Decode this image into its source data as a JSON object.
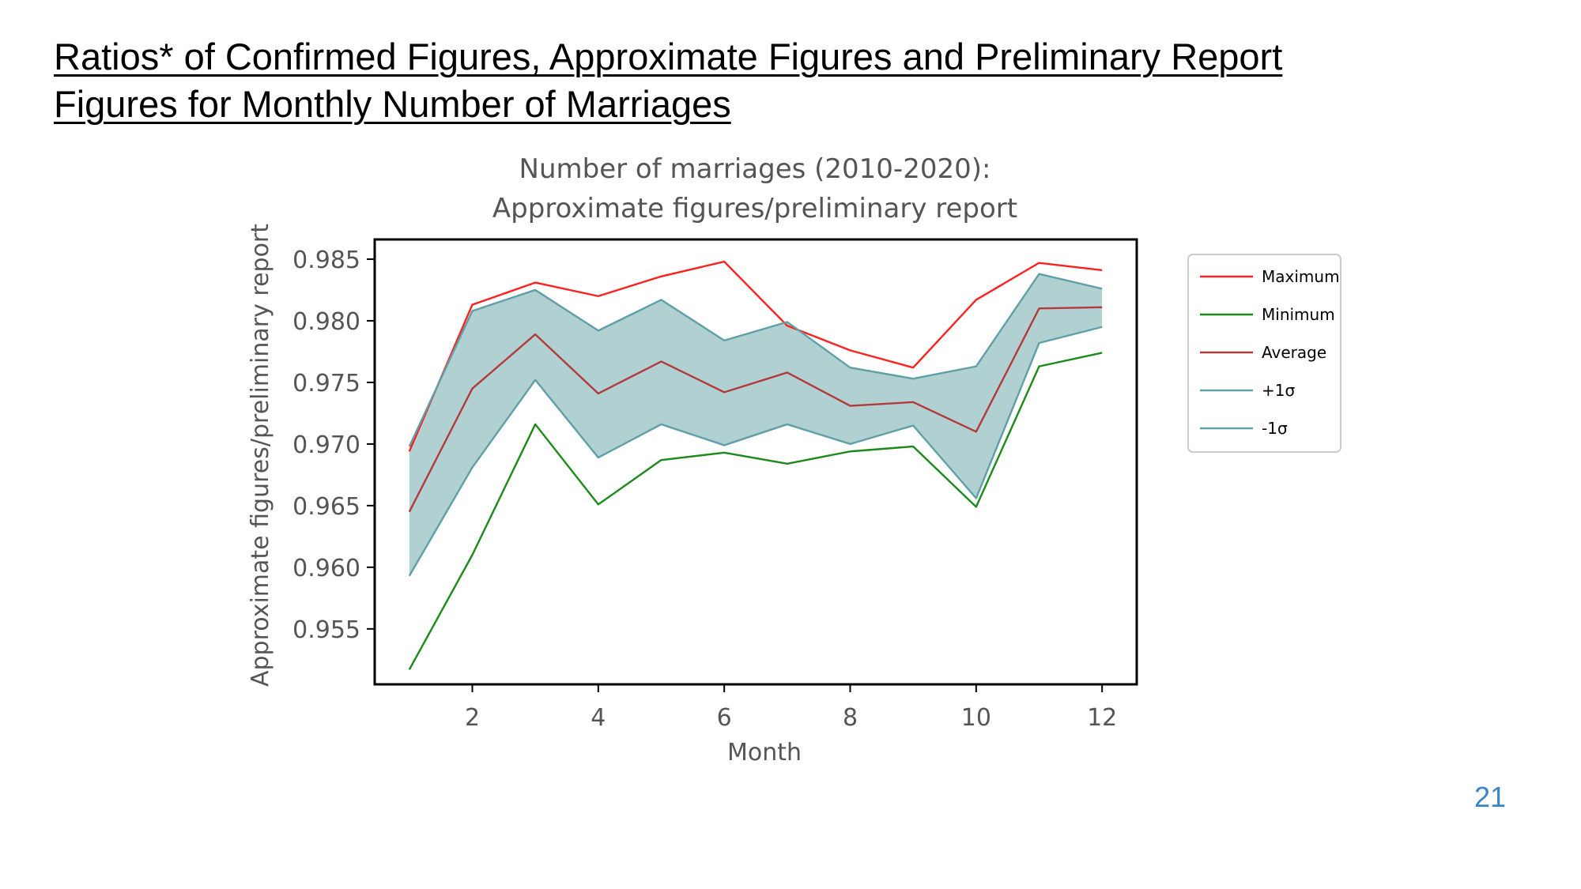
{
  "slide": {
    "title_line1": "Ratios* of Confirmed Figures, Approximate Figures and Preliminary Report",
    "title_line2": "Figures for Monthly Number of Marriages",
    "page_number": "21"
  },
  "chart_data": {
    "type": "line",
    "title": "Number of marriages (2010-2020):\nApproximate figures/preliminary report",
    "xlabel": "Month",
    "ylabel": "Approximate figures/preliminary report",
    "x": [
      1,
      2,
      3,
      4,
      5,
      6,
      7,
      8,
      9,
      10,
      11,
      12
    ],
    "xticks": [
      2,
      4,
      6,
      8,
      10,
      12
    ],
    "yticks": [
      0.955,
      0.96,
      0.965,
      0.97,
      0.975,
      0.98,
      0.985
    ],
    "xlim": [
      0.45,
      12.55
    ],
    "ylim": [
      0.9505,
      0.9866
    ],
    "grid": false,
    "legend_position": "outside-right",
    "shaded_band": {
      "between": [
        "+1σ",
        "-1σ"
      ],
      "color": "#b1d0d2"
    },
    "series": [
      {
        "name": "Maximum",
        "color": "#ff2020",
        "values": [
          0.9694,
          0.9813,
          0.9831,
          0.982,
          0.9836,
          0.9848,
          0.9796,
          0.9776,
          0.9762,
          0.9817,
          0.9847,
          0.9841
        ]
      },
      {
        "name": "Minimum",
        "color": "#1a8a1a",
        "values": [
          0.9517,
          0.961,
          0.9716,
          0.9651,
          0.9687,
          0.9693,
          0.9684,
          0.9694,
          0.9698,
          0.9649,
          0.9763,
          0.9774
        ]
      },
      {
        "name": "Average",
        "color": "#b33a3a",
        "values": [
          0.9645,
          0.9745,
          0.9789,
          0.9741,
          0.9767,
          0.9742,
          0.9758,
          0.9731,
          0.9734,
          0.971,
          0.981,
          0.9811
        ]
      },
      {
        "name": "+1σ",
        "color": "#5f9fa5",
        "values": [
          0.9698,
          0.9808,
          0.9825,
          0.9792,
          0.9817,
          0.9784,
          0.9799,
          0.9762,
          0.9753,
          0.9763,
          0.9838,
          0.9826
        ]
      },
      {
        "name": "-1σ",
        "color": "#5f9fa5",
        "values": [
          0.9593,
          0.9681,
          0.9752,
          0.9689,
          0.9716,
          0.9699,
          0.9716,
          0.97,
          0.9715,
          0.9656,
          0.9782,
          0.9795
        ]
      }
    ]
  }
}
